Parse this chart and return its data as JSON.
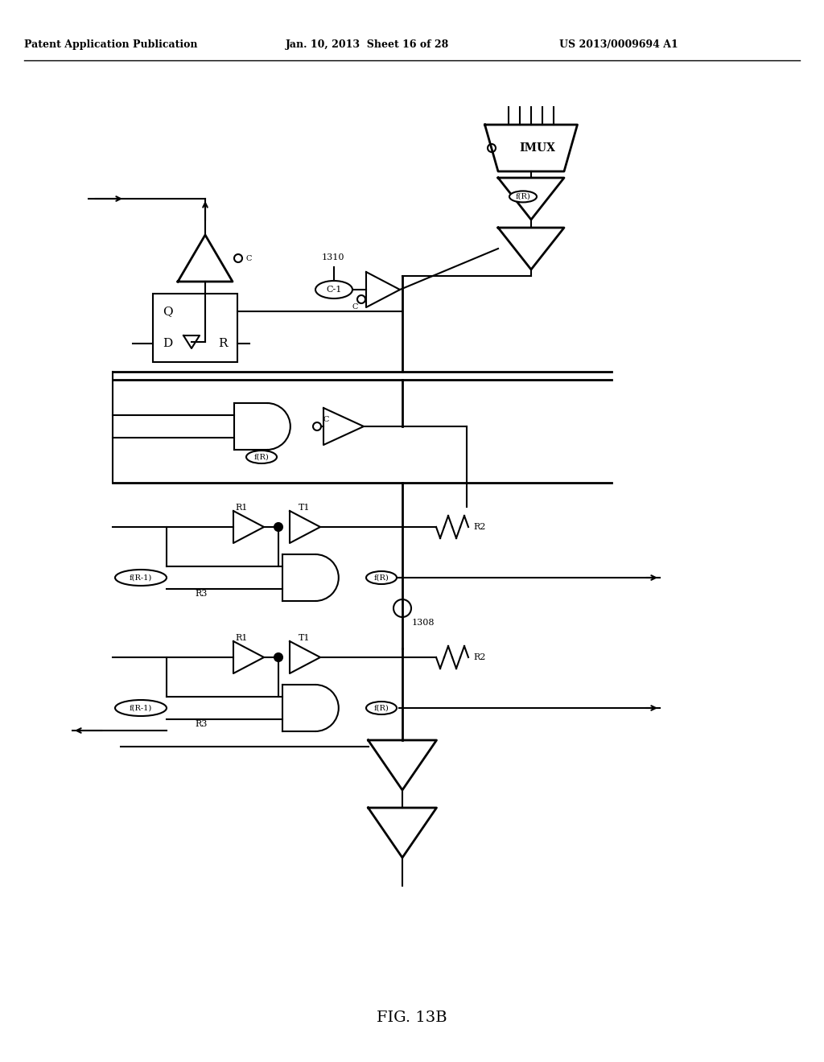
{
  "title": "FIG. 13B",
  "header_left": "Patent Application Publication",
  "header_mid": "Jan. 10, 2013  Sheet 16 of 28",
  "header_right": "US 2013/0009694 A1",
  "bg_color": "#ffffff",
  "line_color": "#000000",
  "line_width": 1.5,
  "fig_width": 10.24,
  "fig_height": 13.2
}
